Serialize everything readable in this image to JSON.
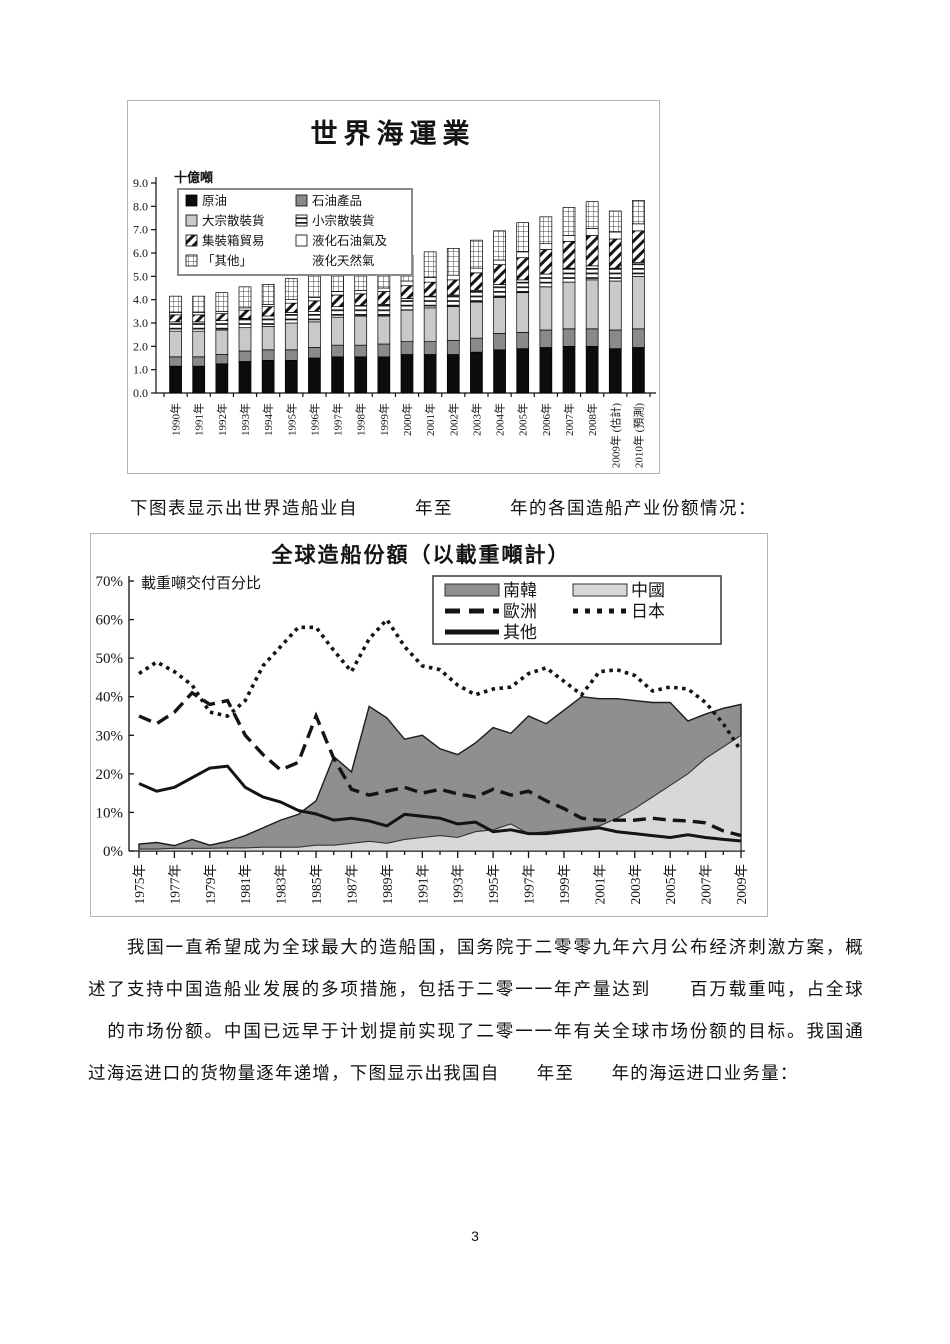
{
  "page": {
    "number": "3"
  },
  "caption_between": "下图表显示出世界造船业自　　　年至　　　年的各国造船产业份额情况：",
  "paragraph": {
    "lines": [
      "　　我国一直希望成为全球最大的造船国，国务院于二零零九年六月公布经济刺激方案，概",
      "述了支持中国造船业发展的多项措施，包括于二零一一年产量达到　　百万载重吨，占全球",
      "　的市场份额。中国已远早于计划提前实现了二零一一年有关全球市场份额的目标。我国通",
      "过海运进口的货物量逐年递增，下图显示出我国自　　年至　　年的海运进口业务量："
    ]
  },
  "chart_data": [
    {
      "type": "bar",
      "stacked": true,
      "title": "世界海運業",
      "unit_label": "十億噸",
      "ylim": [
        0,
        9
      ],
      "y_tick_labels": [
        "0.0",
        "1.0",
        "2.0",
        "3.0",
        "4.0",
        "5.0",
        "6.0",
        "7.0",
        "8.0",
        "9.0"
      ],
      "categories": [
        "1990年",
        "1991年",
        "1992年",
        "1993年",
        "1994年",
        "1995年",
        "1996年",
        "1997年",
        "1998年",
        "1999年",
        "2000年",
        "2001年",
        "2002年",
        "2003年",
        "2004年",
        "2005年",
        "2006年",
        "2007年",
        "2008年",
        "2009年 (估計)",
        "2010年 (預測)"
      ],
      "series": [
        {
          "name": "原油",
          "pattern": "solid-black",
          "values": [
            1.15,
            1.15,
            1.25,
            1.35,
            1.4,
            1.4,
            1.5,
            1.55,
            1.55,
            1.55,
            1.65,
            1.65,
            1.65,
            1.75,
            1.85,
            1.9,
            1.95,
            2.0,
            2.0,
            1.9,
            1.95
          ]
        },
        {
          "name": "石油產品",
          "pattern": "solid-darkgray",
          "values": [
            0.4,
            0.4,
            0.4,
            0.45,
            0.45,
            0.45,
            0.45,
            0.5,
            0.5,
            0.55,
            0.55,
            0.55,
            0.6,
            0.6,
            0.7,
            0.7,
            0.75,
            0.75,
            0.75,
            0.8,
            0.8
          ]
        },
        {
          "name": "大宗散裝貨",
          "pattern": "solid-lightgray",
          "values": [
            1.1,
            1.1,
            1.05,
            1.0,
            1.0,
            1.15,
            1.1,
            1.2,
            1.25,
            1.2,
            1.35,
            1.45,
            1.45,
            1.55,
            1.55,
            1.7,
            1.85,
            2.0,
            2.1,
            2.1,
            2.25
          ]
        },
        {
          "name": "小宗散裝貨",
          "pattern": "hstripes",
          "values": [
            0.4,
            0.4,
            0.4,
            0.4,
            0.45,
            0.45,
            0.45,
            0.45,
            0.45,
            0.5,
            0.5,
            0.5,
            0.5,
            0.5,
            0.55,
            0.55,
            0.55,
            0.6,
            0.6,
            0.55,
            0.6
          ]
        },
        {
          "name": "集裝箱貿易",
          "pattern": "diagonal",
          "values": [
            0.3,
            0.3,
            0.3,
            0.35,
            0.4,
            0.4,
            0.45,
            0.5,
            0.5,
            0.55,
            0.55,
            0.6,
            0.65,
            0.75,
            0.85,
            0.95,
            1.05,
            1.15,
            1.3,
            1.25,
            1.35
          ]
        },
        {
          "name": "液化石油氣及液化天然氣",
          "pattern": "white",
          "values": [
            0.1,
            0.1,
            0.1,
            0.1,
            0.1,
            0.15,
            0.15,
            0.15,
            0.15,
            0.15,
            0.2,
            0.2,
            0.2,
            0.2,
            0.2,
            0.25,
            0.25,
            0.25,
            0.3,
            0.3,
            0.3
          ]
        },
        {
          "name": "「其他」",
          "pattern": "grid",
          "values": [
            0.7,
            0.7,
            0.8,
            0.9,
            0.85,
            0.9,
            1.0,
            1.0,
            1.0,
            1.15,
            1.1,
            1.1,
            1.15,
            1.2,
            1.25,
            1.25,
            1.15,
            1.2,
            1.15,
            0.9,
            1.0
          ]
        }
      ],
      "legend_items": [
        {
          "label": "原油",
          "pattern": "solid-black"
        },
        {
          "label": "石油產品",
          "pattern": "solid-darkgray"
        },
        {
          "label": "大宗散裝貨",
          "pattern": "solid-lightgray"
        },
        {
          "label": "小宗散裝貨",
          "pattern": "hstripes"
        },
        {
          "label": "集裝箱貿易",
          "pattern": "diagonal"
        },
        {
          "label": "液化石油氣及",
          "label2": "液化天然氣",
          "pattern": "white"
        },
        {
          "label": "「其他」",
          "pattern": "grid"
        }
      ]
    },
    {
      "type": "area-line",
      "title": "全球造船份額（以載重噸計）",
      "y_axis_label": "載重噸交付百分比",
      "ylim": [
        0,
        70
      ],
      "y_tick_labels": [
        "0%",
        "10%",
        "20%",
        "30%",
        "40%",
        "50%",
        "60%",
        "70%"
      ],
      "x_years_range": [
        1975,
        2009
      ],
      "x_tick_labels": [
        "1975年",
        "1977年",
        "1979年",
        "1981年",
        "1983年",
        "1985年",
        "1987年",
        "1989年",
        "1991年",
        "1993年",
        "1995年",
        "1997年",
        "1999年",
        "2001年",
        "2003年",
        "2005年",
        "2007年",
        "2009年"
      ],
      "series": [
        {
          "name": "南韓",
          "style": "area-dark",
          "values": [
            1.8,
            2.2,
            1.4,
            3.0,
            1.5,
            2.5,
            4.0,
            6.0,
            8.0,
            9.5,
            13.0,
            24.5,
            20.5,
            37.5,
            34.5,
            29.0,
            30.0,
            26.5,
            25.0,
            28.0,
            32.0,
            30.5,
            35.0,
            33.0,
            36.5,
            40.0,
            39.5,
            39.5,
            39.0,
            38.5,
            38.5,
            33.7,
            35.5,
            37.0,
            38.0
          ]
        },
        {
          "name": "中國",
          "style": "area-light",
          "values": [
            0.5,
            0.5,
            0.7,
            0.7,
            0.7,
            0.8,
            0.8,
            1.0,
            1.0,
            1.0,
            1.5,
            1.5,
            2.0,
            2.5,
            2.0,
            3.0,
            3.5,
            4.0,
            3.5,
            5.0,
            5.5,
            7.0,
            4.5,
            5.0,
            5.5,
            6.0,
            6.5,
            8.5,
            11.0,
            14.0,
            17.0,
            20.0,
            24.0,
            27.0,
            30.0
          ]
        },
        {
          "name": "歐洲",
          "style": "dashed",
          "values": [
            35,
            33,
            36,
            41,
            38,
            39,
            30,
            25,
            21,
            23,
            35,
            24,
            16,
            14.5,
            15.5,
            16.5,
            15,
            16,
            14.8,
            14,
            16,
            14.5,
            15.5,
            13,
            11,
            8.5,
            8,
            8,
            8,
            8.5,
            8,
            7.8,
            7.3,
            5.2,
            4
          ]
        },
        {
          "name": "日本",
          "style": "dotted",
          "values": [
            46,
            49,
            46.5,
            43,
            36,
            35,
            39,
            48,
            53,
            58,
            58,
            52,
            46.5,
            55,
            60,
            53,
            48,
            47,
            43,
            40.5,
            42,
            42.5,
            46,
            47.5,
            44,
            40.5,
            46.5,
            47,
            45.5,
            41.5,
            42.5,
            42,
            38.5,
            33,
            26
          ]
        },
        {
          "name": "其他",
          "style": "solid",
          "values": [
            17.5,
            15.5,
            16.5,
            19,
            21.5,
            22,
            16.5,
            14,
            12.7,
            10.5,
            9.6,
            8,
            8.5,
            7.8,
            6.5,
            9.5,
            9,
            8.5,
            7,
            7.5,
            5,
            5.5,
            4.5,
            4.5,
            5,
            5.5,
            6,
            5,
            4.5,
            4,
            3.5,
            4.2,
            3.5,
            3,
            2.6
          ]
        }
      ],
      "colors": {
        "area_dark": "#8f8f8f",
        "area_light": "#d8d8d8",
        "line": "#141414"
      }
    }
  ]
}
